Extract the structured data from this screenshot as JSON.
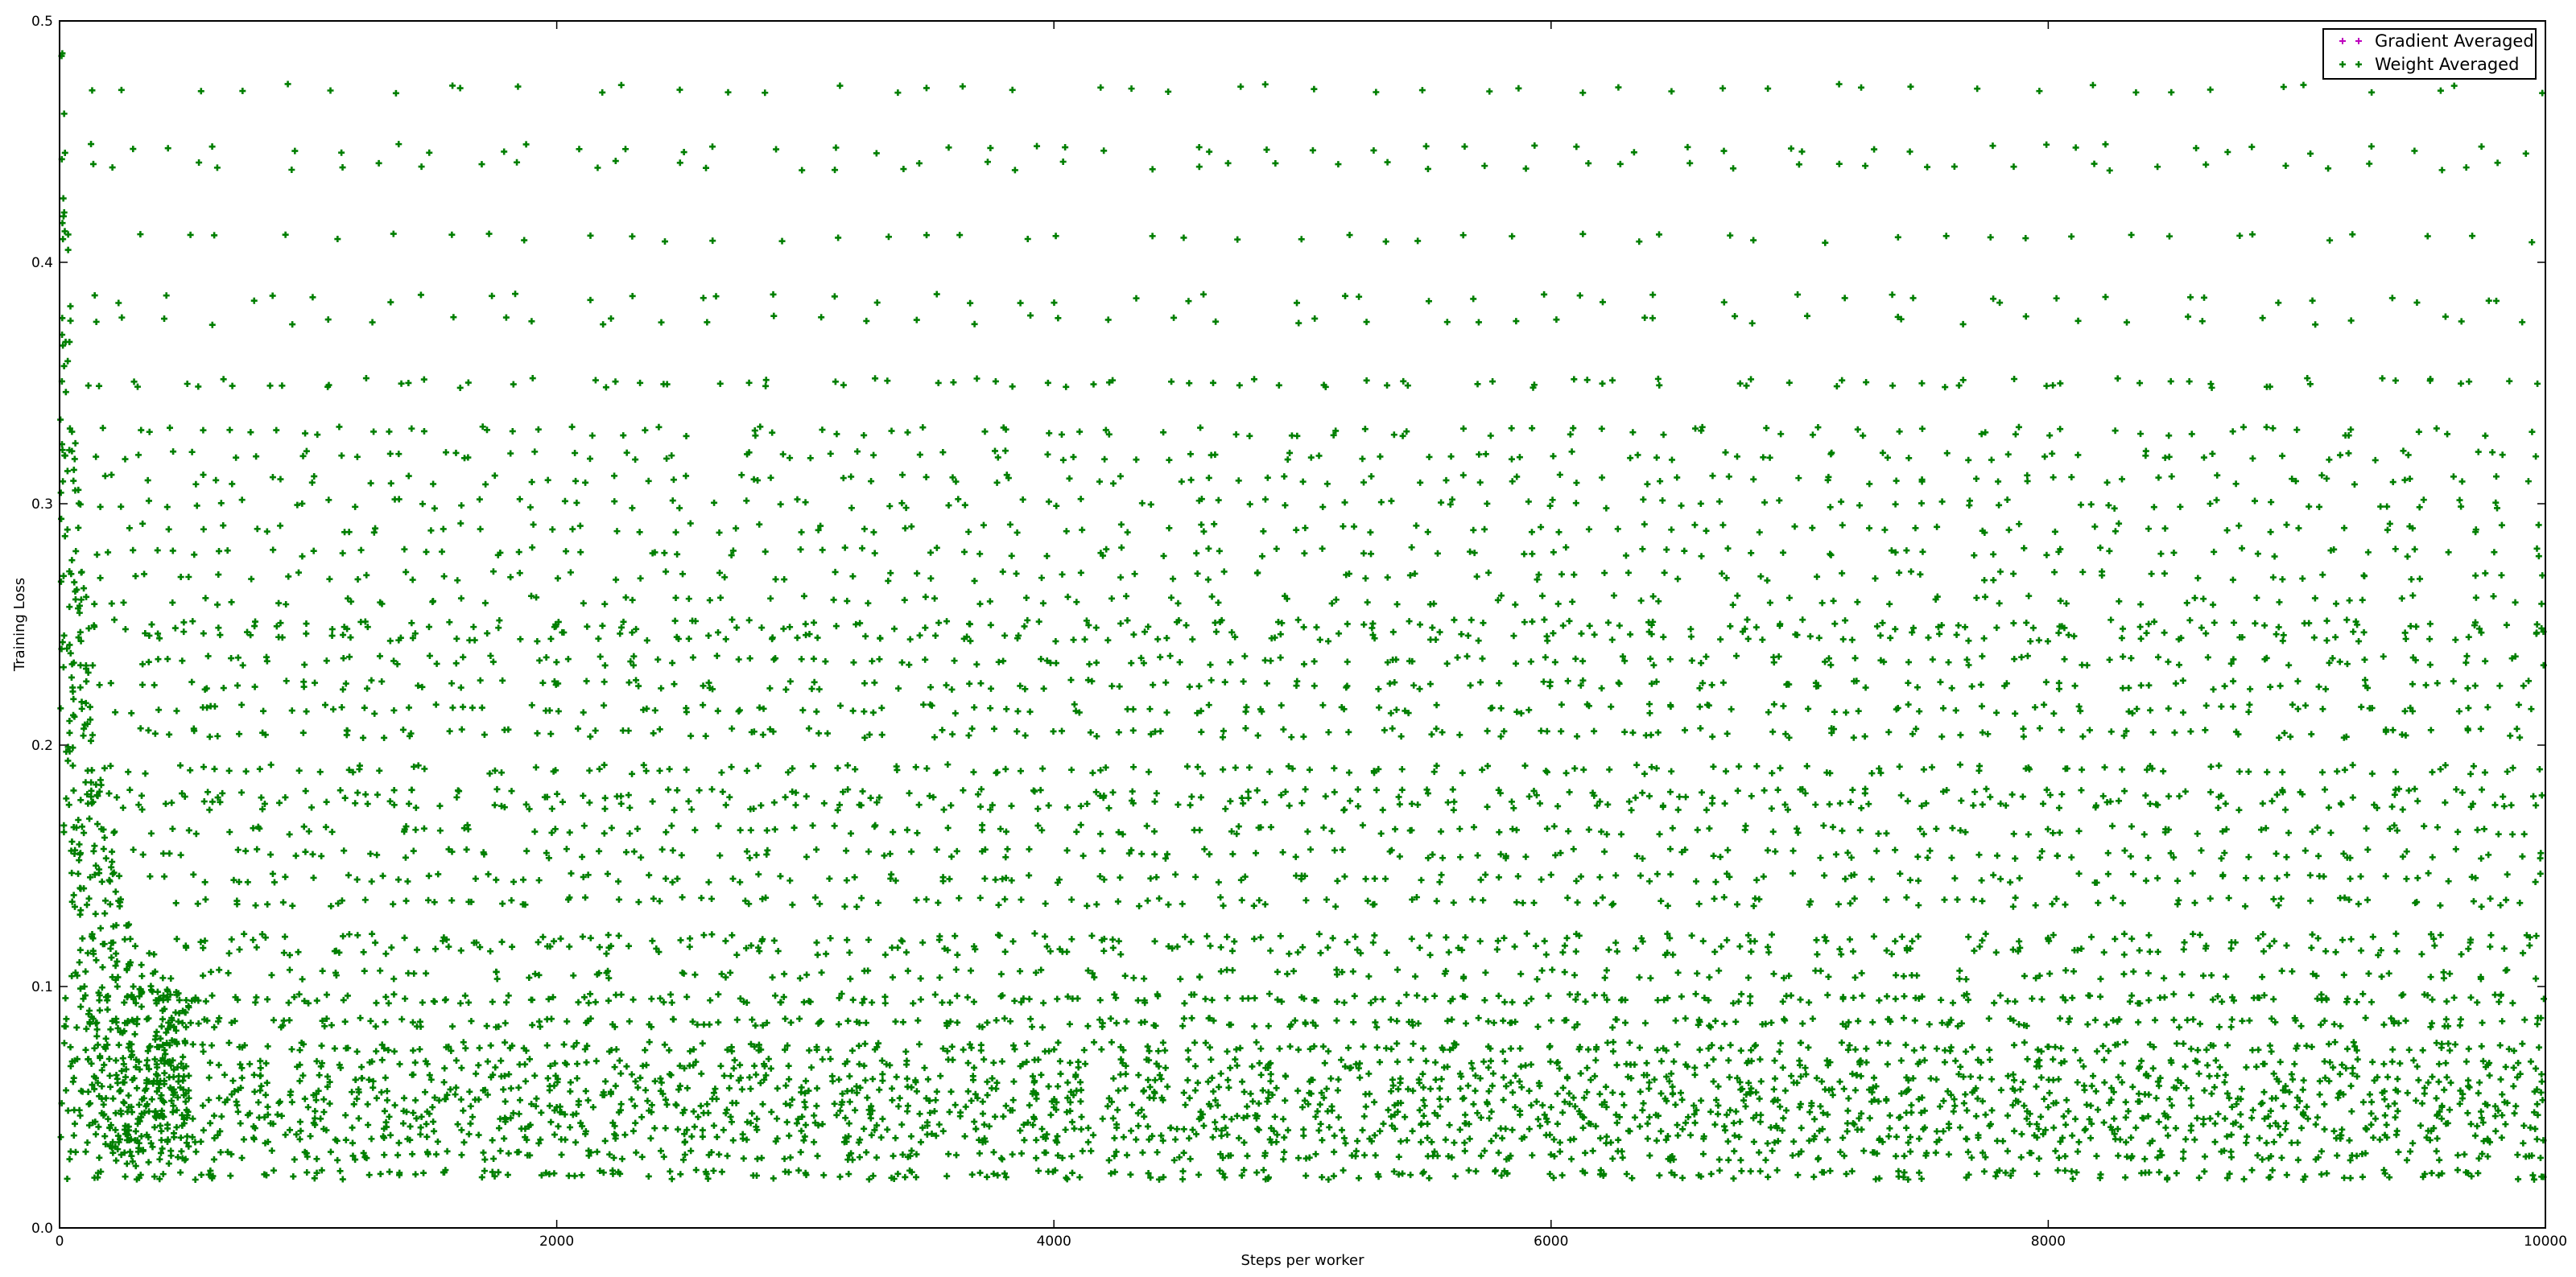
{
  "chart_data": {
    "type": "scatter",
    "title": "",
    "xlabel": "Steps per worker",
    "ylabel": "Training Loss",
    "xlim": [
      0,
      10000
    ],
    "ylim": [
      0.0,
      0.5
    ],
    "xticks": [
      0,
      2000,
      4000,
      6000,
      8000,
      10000
    ],
    "xtick_labels": [
      "0",
      "2000",
      "4000",
      "6000",
      "8000",
      "10000"
    ],
    "yticks": [
      0.0,
      0.1,
      0.2,
      0.3,
      0.4,
      0.5
    ],
    "ytick_labels": [
      "0.0",
      "0.1",
      "0.2",
      "0.3",
      "0.4",
      "0.5"
    ],
    "grid": false,
    "legend_position": "top-right",
    "series": [
      {
        "name": "Gradient Averaged",
        "color": "#bf00bf",
        "marker": "plus",
        "note_visible": "fully overplotted by the Weight Averaged series",
        "x": [],
        "y": []
      },
      {
        "name": "Weight Averaged",
        "color": "#007f00",
        "marker": "plus",
        "x": [
          0,
          10,
          20,
          30,
          40,
          50,
          60,
          80,
          100,
          120,
          150,
          180,
          200,
          250,
          300,
          350,
          400,
          500,
          600,
          800,
          1000,
          1500,
          2000,
          3000,
          4000,
          5000,
          6000,
          7000,
          8000,
          9000,
          10000
        ],
        "y": [
          0.42,
          0.37,
          0.32,
          0.24,
          0.21,
          0.16,
          0.155,
          0.11,
          0.1,
          0.09,
          0.085,
          0.075,
          0.07,
          0.065,
          0.062,
          0.06,
          0.058,
          0.055,
          0.053,
          0.052,
          0.05,
          0.05,
          0.05,
          0.05,
          0.05,
          0.05,
          0.05,
          0.05,
          0.05,
          0.05,
          0.05
        ],
        "recurring_loss_levels": [
          0.472,
          0.447,
          0.44,
          0.41,
          0.385,
          0.376,
          0.35,
          0.33,
          0.32,
          0.31,
          0.3,
          0.29,
          0.28,
          0.27,
          0.26,
          0.25,
          0.245,
          0.235,
          0.225,
          0.215,
          0.205,
          0.19,
          0.18,
          0.175,
          0.165,
          0.155,
          0.145,
          0.135,
          0.12,
          0.115,
          0.105,
          0.095,
          0.085,
          0.075,
          0.068,
          0.062,
          0.057,
          0.052,
          0.047,
          0.042,
          0.037,
          0.03,
          0.022
        ],
        "recurrence_period_steps": 200
      }
    ]
  }
}
